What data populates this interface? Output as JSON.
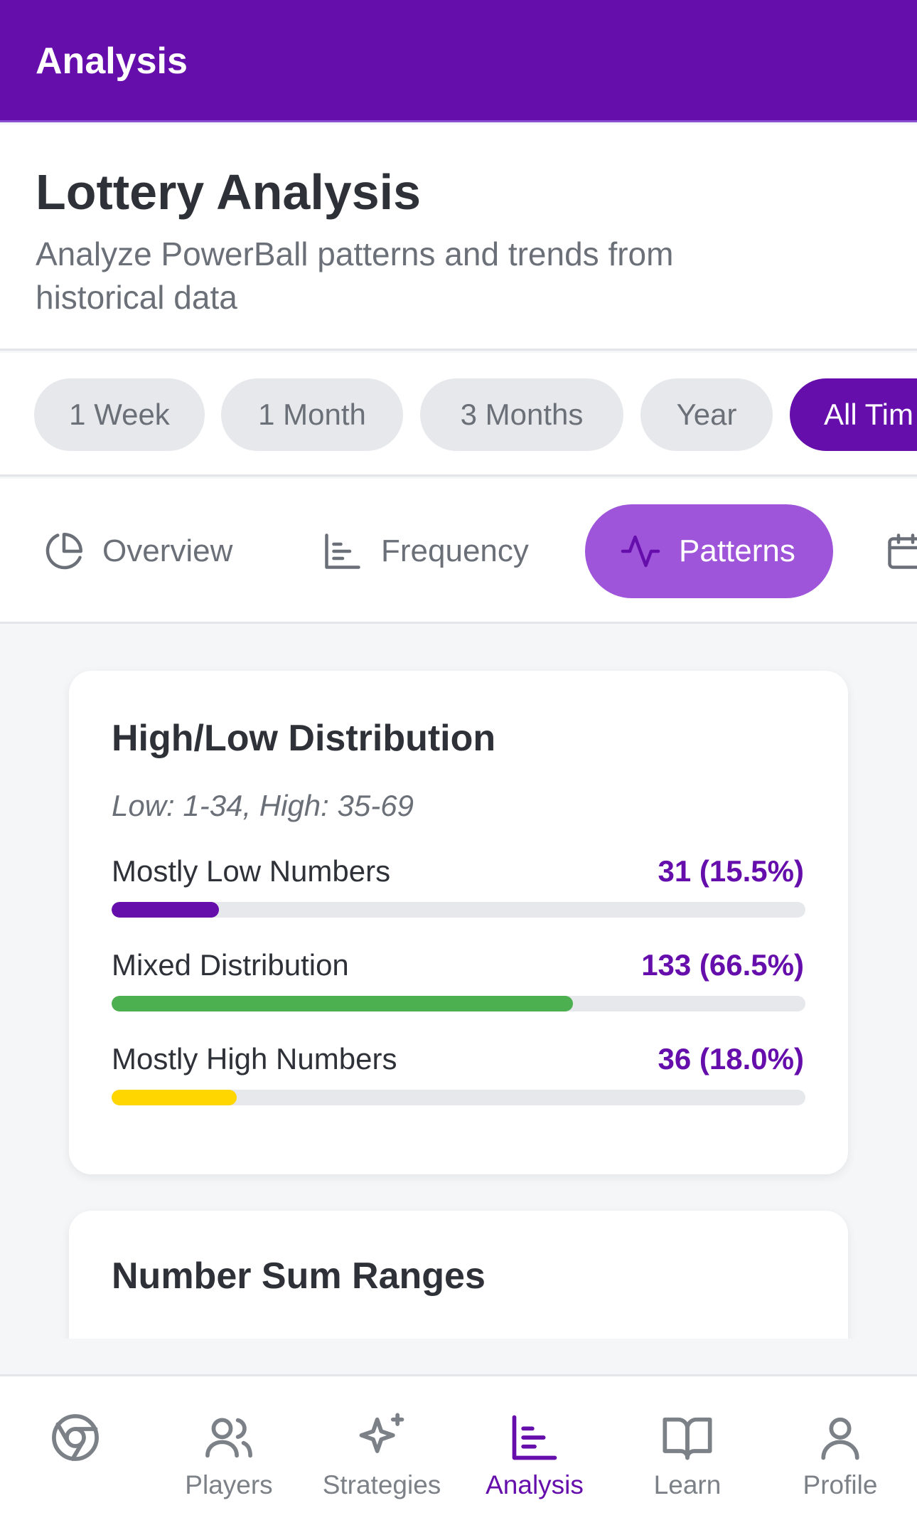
{
  "app_bar": {
    "title": "Analysis"
  },
  "header": {
    "title": "Lottery Analysis",
    "subtitle": "Analyze PowerBall patterns and trends from historical data"
  },
  "time_filters": [
    {
      "label": "1 Week",
      "active": false
    },
    {
      "label": "1 Month",
      "active": false
    },
    {
      "label": "3 Months",
      "active": false
    },
    {
      "label": "Year",
      "active": false
    },
    {
      "label": "All Tim",
      "active": true
    }
  ],
  "analysis_tabs": [
    {
      "label": "Overview",
      "icon": "pie-chart-icon",
      "active": false
    },
    {
      "label": "Frequency",
      "icon": "bar-chart-icon",
      "active": false
    },
    {
      "label": "Patterns",
      "icon": "activity-icon",
      "active": true
    },
    {
      "label": "",
      "icon": "calendar-icon",
      "active": false
    }
  ],
  "high_low_card": {
    "title": "High/Low Distribution",
    "note": "Low: 1-34, High: 35-69",
    "rows": [
      {
        "label": "Mostly Low Numbers",
        "value": "31 (15.5%)",
        "percent": 15.5,
        "color": "#650eab"
      },
      {
        "label": "Mixed Distribution",
        "value": "133 (66.5%)",
        "percent": 66.5,
        "color": "#4caf50"
      },
      {
        "label": "Mostly High Numbers",
        "value": "36 (18.0%)",
        "percent": 18.0,
        "color": "#ffd600"
      }
    ]
  },
  "sum_ranges_card": {
    "title": "Number Sum Ranges"
  },
  "bottom_nav": [
    {
      "label": "",
      "icon": "chrome-icon",
      "active": false
    },
    {
      "label": "Players",
      "icon": "users-icon",
      "active": false
    },
    {
      "label": "Strategies",
      "icon": "sparkles-icon",
      "active": false
    },
    {
      "label": "Analysis",
      "icon": "bar-chart-icon",
      "active": true
    },
    {
      "label": "Learn",
      "icon": "book-icon",
      "active": false
    },
    {
      "label": "Profile",
      "icon": "user-icon",
      "active": false
    }
  ],
  "colors": {
    "brand": "#650eab",
    "tab_active": "#9e55da",
    "mixed": "#4caf50",
    "high": "#ffd600"
  }
}
